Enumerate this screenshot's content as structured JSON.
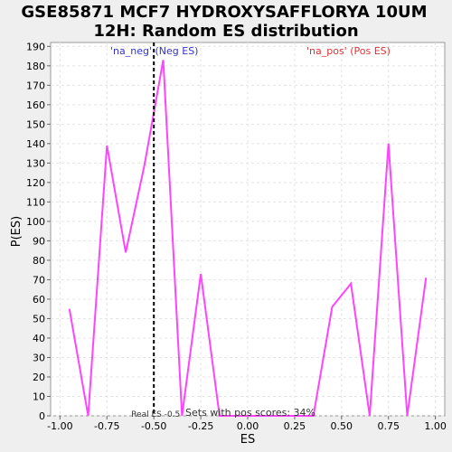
{
  "chart_data": {
    "type": "line",
    "title_line1": "GSE85871 MCF7 HYDROXYSAFFLORYA 10UM",
    "title_line2": "12H: Random ES distribution",
    "xlabel": "ES",
    "ylabel": "P(ES)",
    "xlim": [
      -1.05,
      1.05
    ],
    "ylim": [
      0,
      192
    ],
    "x_ticks": [
      -1.0,
      -0.75,
      -0.5,
      -0.25,
      0.0,
      0.25,
      0.5,
      0.75,
      1.0
    ],
    "x_tick_labels": [
      "-1.00",
      "-0.75",
      "-0.50",
      "-0.25",
      "0.00",
      "0.25",
      "0.50",
      "0.75",
      "1.00"
    ],
    "y_ticks": [
      0,
      10,
      20,
      30,
      40,
      50,
      60,
      70,
      80,
      90,
      100,
      110,
      120,
      130,
      140,
      150,
      160,
      170,
      180,
      190
    ],
    "grid": true,
    "series": [
      {
        "color": "#ff44ff",
        "x": [
          -0.95,
          -0.85,
          -0.75,
          -0.65,
          -0.55,
          -0.45,
          -0.35,
          -0.25,
          -0.15,
          -0.05,
          0.05,
          0.15,
          0.25,
          0.35,
          0.45,
          0.55,
          0.65,
          0.75,
          0.85,
          0.95
        ],
        "y": [
          55,
          0,
          139,
          84,
          129,
          183,
          0,
          73,
          0,
          0,
          0,
          0,
          0,
          0,
          56,
          68,
          0,
          140,
          0,
          71
        ]
      }
    ],
    "real_es": {
      "x": -0.5,
      "label": "Real ES -0.5"
    },
    "annotations": {
      "neg_label": "'na_neg' (Neg ES)",
      "neg_color": "#3333cc",
      "pos_label": "'na_pos' (Pos ES)",
      "pos_color": "#dd3333",
      "pos_scores": "Sets with pos scores: 34%"
    }
  }
}
